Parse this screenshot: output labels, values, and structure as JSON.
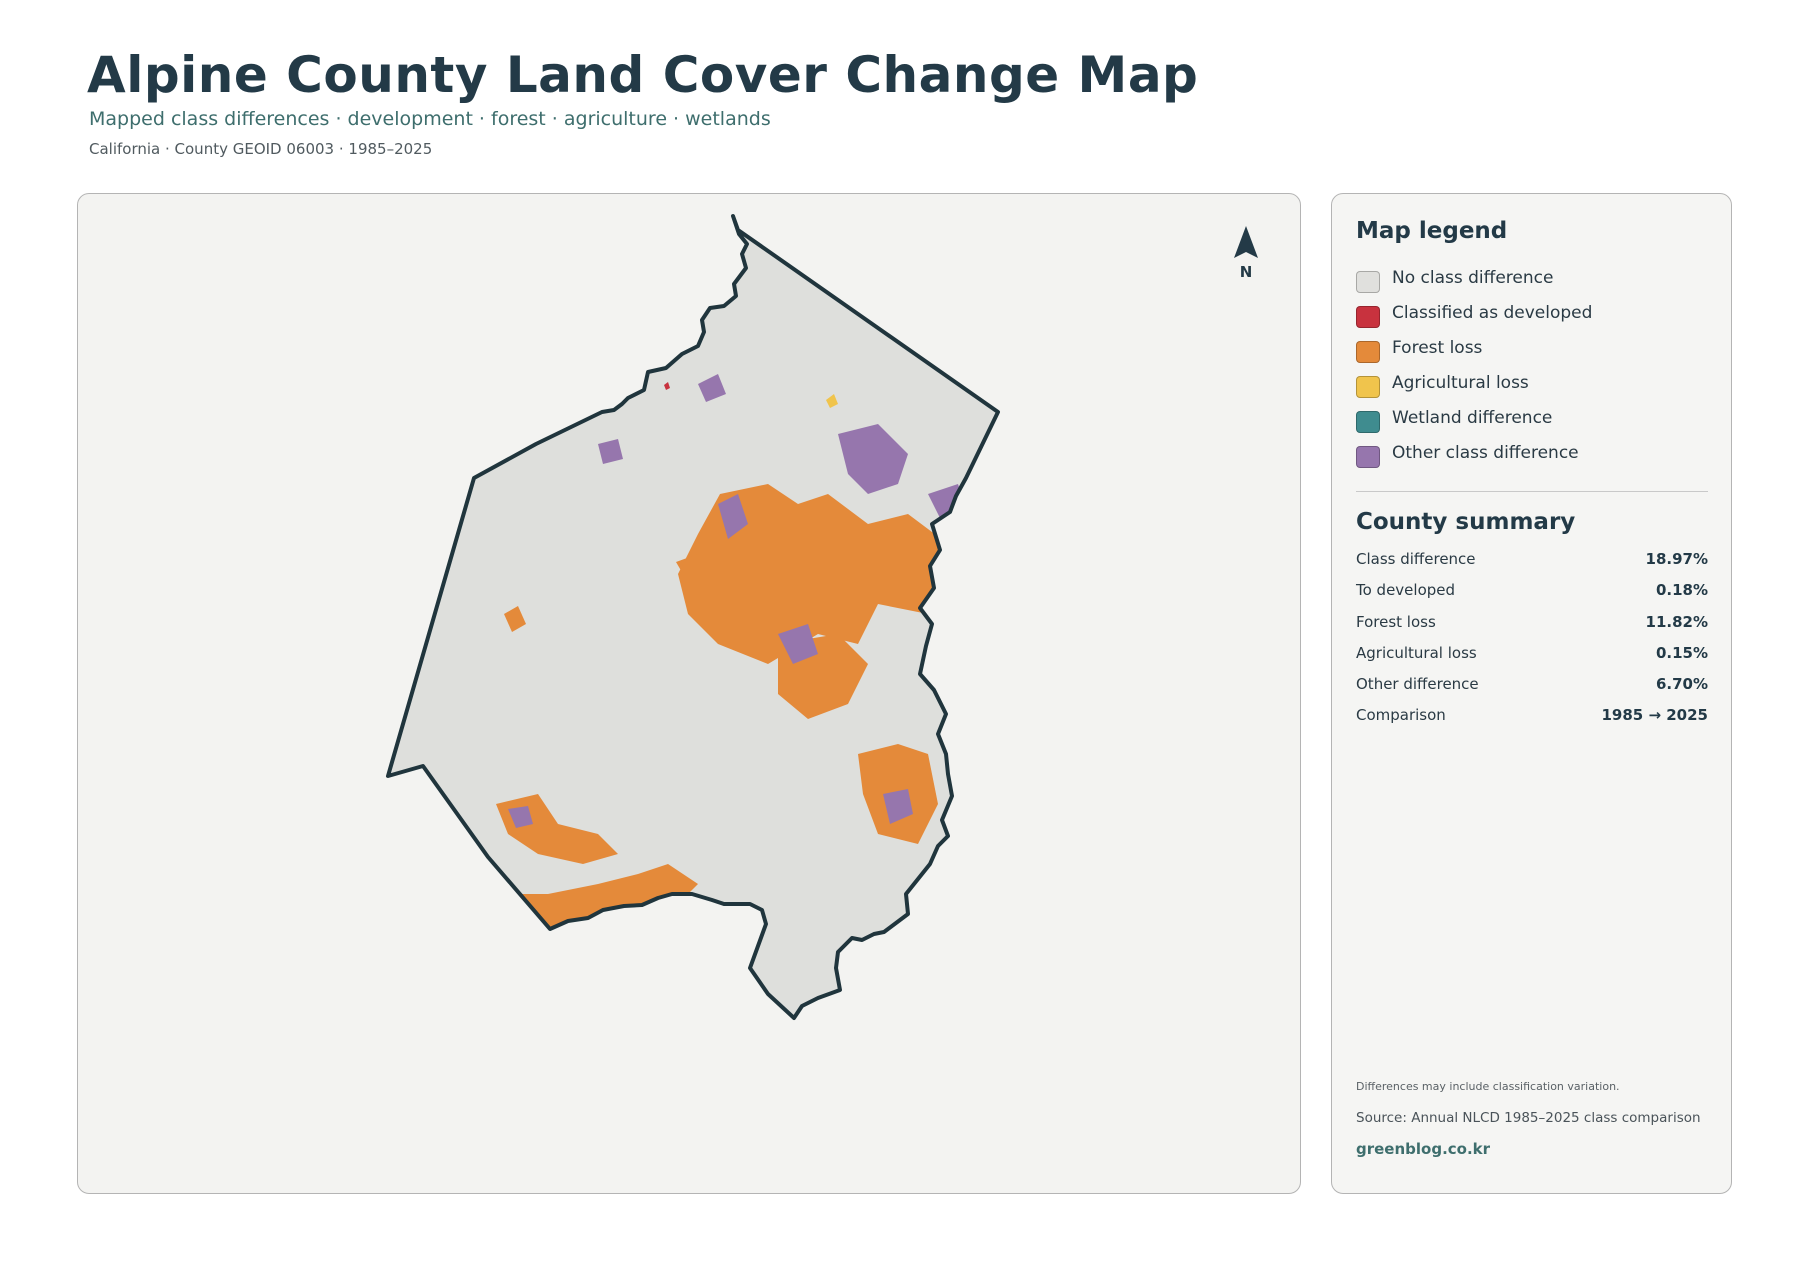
{
  "header": {
    "title": "Alpine County Land Cover Change Map",
    "subtitle": "Mapped class differences · development · forest · agriculture · wetlands",
    "meta": "California · County GEOID 06003 · 1985–2025"
  },
  "map": {
    "north_label": "N",
    "outline_color": "#20353d",
    "base_color": "#dedfdc",
    "north_icon": "north-arrow-icon"
  },
  "legend": {
    "title": "Map legend",
    "items": [
      {
        "label": "No class difference",
        "color": "#e0e0dd"
      },
      {
        "label": "Classified as developed",
        "color": "#c8323e"
      },
      {
        "label": "Forest loss",
        "color": "#e48a3a"
      },
      {
        "label": "Agricultural loss",
        "color": "#f0c44c"
      },
      {
        "label": "Wetland difference",
        "color": "#3f8c8f"
      },
      {
        "label": "Other class difference",
        "color": "#9676ad"
      }
    ]
  },
  "summary": {
    "title": "County summary",
    "rows": [
      {
        "label": "Class difference",
        "value": "18.97%"
      },
      {
        "label": "To developed",
        "value": "0.18%"
      },
      {
        "label": "Forest loss",
        "value": "11.82%"
      },
      {
        "label": "Agricultural loss",
        "value": "0.15%"
      },
      {
        "label": "Other difference",
        "value": "6.70%"
      },
      {
        "label": "Comparison",
        "value": "1985 → 2025"
      }
    ]
  },
  "footer": {
    "note": "Differences may include classification variation.",
    "source": "Source: Annual NLCD 1985–2025 class comparison",
    "site": "greenblog.co.kr"
  }
}
